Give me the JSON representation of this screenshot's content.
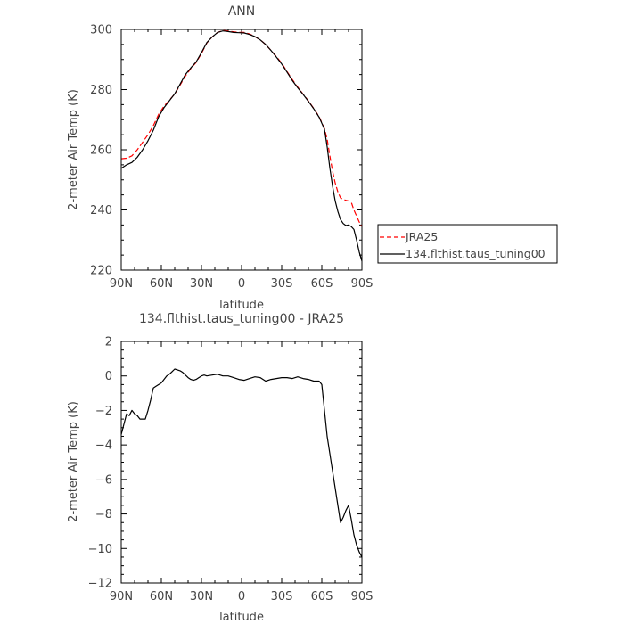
{
  "chart_data": [
    {
      "type": "line",
      "title": "ANN",
      "xlabel": "latitude",
      "ylabel": "2-meter Air Temp (K)",
      "x_tick_labels": [
        "90N",
        "60N",
        "30N",
        "0",
        "30S",
        "60S",
        "90S"
      ],
      "x_tick_values": [
        90,
        60,
        30,
        0,
        -30,
        -60,
        -90
      ],
      "xlim": [
        90,
        -90
      ],
      "y_tick_values": [
        220,
        240,
        260,
        280,
        300
      ],
      "ylim": [
        220,
        300
      ],
      "grid": false,
      "legend_position": "right",
      "series": [
        {
          "name": "JRA25",
          "color": "#ff0000",
          "dash": "dashed",
          "x": [
            90,
            86,
            82,
            78,
            74,
            70,
            66,
            62,
            58,
            54,
            50,
            46,
            42,
            38,
            34,
            30,
            26,
            22,
            18,
            14,
            10,
            6,
            2,
            -2,
            -6,
            -10,
            -14,
            -18,
            -22,
            -26,
            -30,
            -34,
            -38,
            -42,
            -46,
            -50,
            -54,
            -58,
            -62,
            -64,
            -66,
            -68,
            -70,
            -72,
            -74,
            -76,
            -78,
            -80,
            -82,
            -84,
            -86,
            -88,
            -90
          ],
          "y": [
            257,
            257.2,
            258,
            260,
            262.5,
            265,
            268,
            271.8,
            274.5,
            276.5,
            278.5,
            281.5,
            284.5,
            287,
            289,
            292,
            295.5,
            297.5,
            299,
            299.6,
            299.5,
            299.2,
            299,
            299,
            298.5,
            297.6,
            296.5,
            295,
            293,
            291,
            288.8,
            286,
            283.3,
            280.8,
            278.5,
            276.2,
            273.7,
            271,
            267,
            263.5,
            258,
            253,
            249,
            246,
            244,
            243.5,
            243.2,
            243,
            242.6,
            240,
            238,
            236,
            234.5
          ]
        },
        {
          "name": "134.flthist.taus_tuning00",
          "color": "#000000",
          "dash": "solid",
          "x": [
            90,
            86,
            82,
            78,
            74,
            70,
            66,
            62,
            58,
            54,
            50,
            46,
            42,
            38,
            34,
            30,
            26,
            22,
            18,
            14,
            10,
            6,
            2,
            -2,
            -6,
            -10,
            -14,
            -18,
            -22,
            -26,
            -30,
            -34,
            -38,
            -42,
            -46,
            -50,
            -54,
            -58,
            -62,
            -64,
            -66,
            -68,
            -70,
            -72,
            -74,
            -76,
            -78,
            -80,
            -82,
            -84,
            -86,
            -88,
            -90
          ],
          "y": [
            253.8,
            255,
            255.8,
            257.5,
            260,
            263,
            266.5,
            271,
            274,
            276.3,
            278.6,
            281.8,
            285,
            287.2,
            289.2,
            292.3,
            295.6,
            297.5,
            299,
            299.5,
            299.3,
            299,
            298.9,
            298.8,
            298.3,
            297.6,
            296.5,
            295,
            293,
            290.8,
            288.5,
            285.8,
            283,
            280.6,
            278.4,
            276.1,
            273.6,
            270.8,
            266.8,
            261,
            254,
            248,
            243,
            239.5,
            236.8,
            235.5,
            234.8,
            235,
            234.5,
            233.5,
            230,
            226,
            223
          ]
        }
      ]
    },
    {
      "type": "line",
      "title": "134.flthist.taus_tuning00 - JRA25",
      "xlabel": "latitude",
      "ylabel": "2-meter Air Temp (K)",
      "x_tick_labels": [
        "90N",
        "60N",
        "30N",
        "0",
        "30S",
        "60S",
        "90S"
      ],
      "x_tick_values": [
        90,
        60,
        30,
        0,
        -30,
        -60,
        -90
      ],
      "xlim": [
        90,
        -90
      ],
      "y_tick_values": [
        2,
        0,
        -2,
        -4,
        -6,
        -8,
        -10,
        -12
      ],
      "ylim": [
        -12,
        2
      ],
      "grid": false,
      "series": [
        {
          "color": "#000000",
          "dash": "solid",
          "x": [
            90,
            88,
            86,
            84,
            82,
            80,
            78,
            76,
            74,
            72,
            70,
            68,
            66,
            64,
            62,
            60,
            58,
            56,
            54,
            52,
            50,
            48,
            46,
            44,
            42,
            40,
            38,
            36,
            34,
            32,
            30,
            28,
            26,
            22,
            18,
            14,
            10,
            6,
            2,
            -2,
            -6,
            -10,
            -14,
            -18,
            -22,
            -26,
            -30,
            -34,
            -38,
            -42,
            -46,
            -50,
            -54,
            -58,
            -60,
            -62,
            -64,
            -66,
            -68,
            -70,
            -72,
            -74,
            -76,
            -78,
            -80,
            -82,
            -84,
            -86,
            -88,
            -90
          ],
          "y": [
            -3.4,
            -2.8,
            -2.2,
            -2.3,
            -2.0,
            -2.2,
            -2.3,
            -2.5,
            -2.5,
            -2.5,
            -2.0,
            -1.4,
            -0.7,
            -0.6,
            -0.5,
            -0.4,
            -0.2,
            0.0,
            0.1,
            0.25,
            0.4,
            0.35,
            0.3,
            0.2,
            0.05,
            -0.1,
            -0.2,
            -0.25,
            -0.2,
            -0.1,
            0.0,
            0.05,
            0.0,
            0.05,
            0.1,
            0.0,
            0.0,
            -0.1,
            -0.2,
            -0.25,
            -0.15,
            -0.05,
            -0.1,
            -0.3,
            -0.2,
            -0.15,
            -0.1,
            -0.1,
            -0.15,
            -0.05,
            -0.15,
            -0.2,
            -0.3,
            -0.3,
            -0.5,
            -2.0,
            -3.5,
            -4.5,
            -5.5,
            -6.5,
            -7.5,
            -8.5,
            -8.2,
            -7.8,
            -7.5,
            -8.3,
            -9.2,
            -9.8,
            -10.2,
            -10.5
          ]
        }
      ]
    }
  ]
}
